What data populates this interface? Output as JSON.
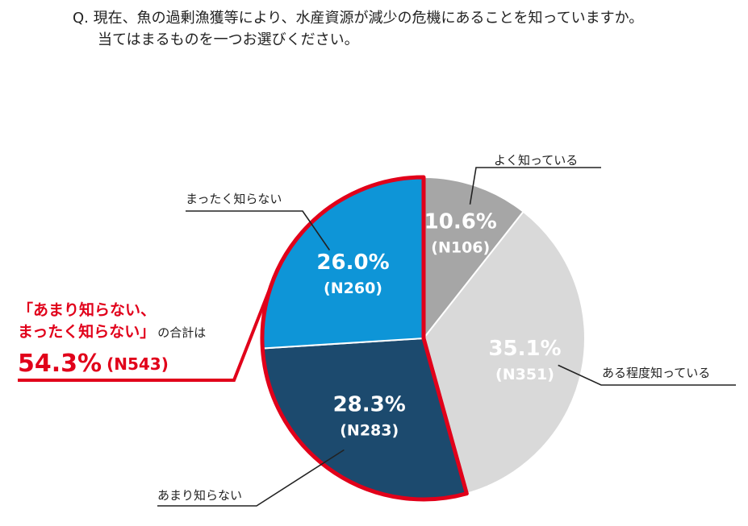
{
  "question": {
    "line1": "Q. 現在、魚の過剰漁獲等により、水産資源が減少の危機にあることを知っていますか。",
    "line2": "当てはまるものを一つお選びください。"
  },
  "chart_data": {
    "type": "pie",
    "title": "",
    "slices": [
      {
        "label": "よく知っている",
        "value": 10.6,
        "pct_text": "10.6%",
        "n_text": "(N106)",
        "color": "#a6a6a6"
      },
      {
        "label": "ある程度知っている",
        "value": 35.1,
        "pct_text": "35.1%",
        "n_text": "(N351)",
        "color": "#d9d9d9"
      },
      {
        "label": "あまり知らない",
        "value": 28.3,
        "pct_text": "28.3%",
        "n_text": "(N283)",
        "color": "#1c4a6e"
      },
      {
        "label": "まったく知らない",
        "value": 26.0,
        "pct_text": "26.0%",
        "n_text": "(N260)",
        "color": "#0e95d7"
      }
    ],
    "highlight": {
      "line1": "「あまり知らない、",
      "line2": "まったく知らない」",
      "line2_suffix": "の合計は",
      "total_pct": "54.3%",
      "total_n": "(N543)",
      "color": "#e1001a"
    }
  }
}
